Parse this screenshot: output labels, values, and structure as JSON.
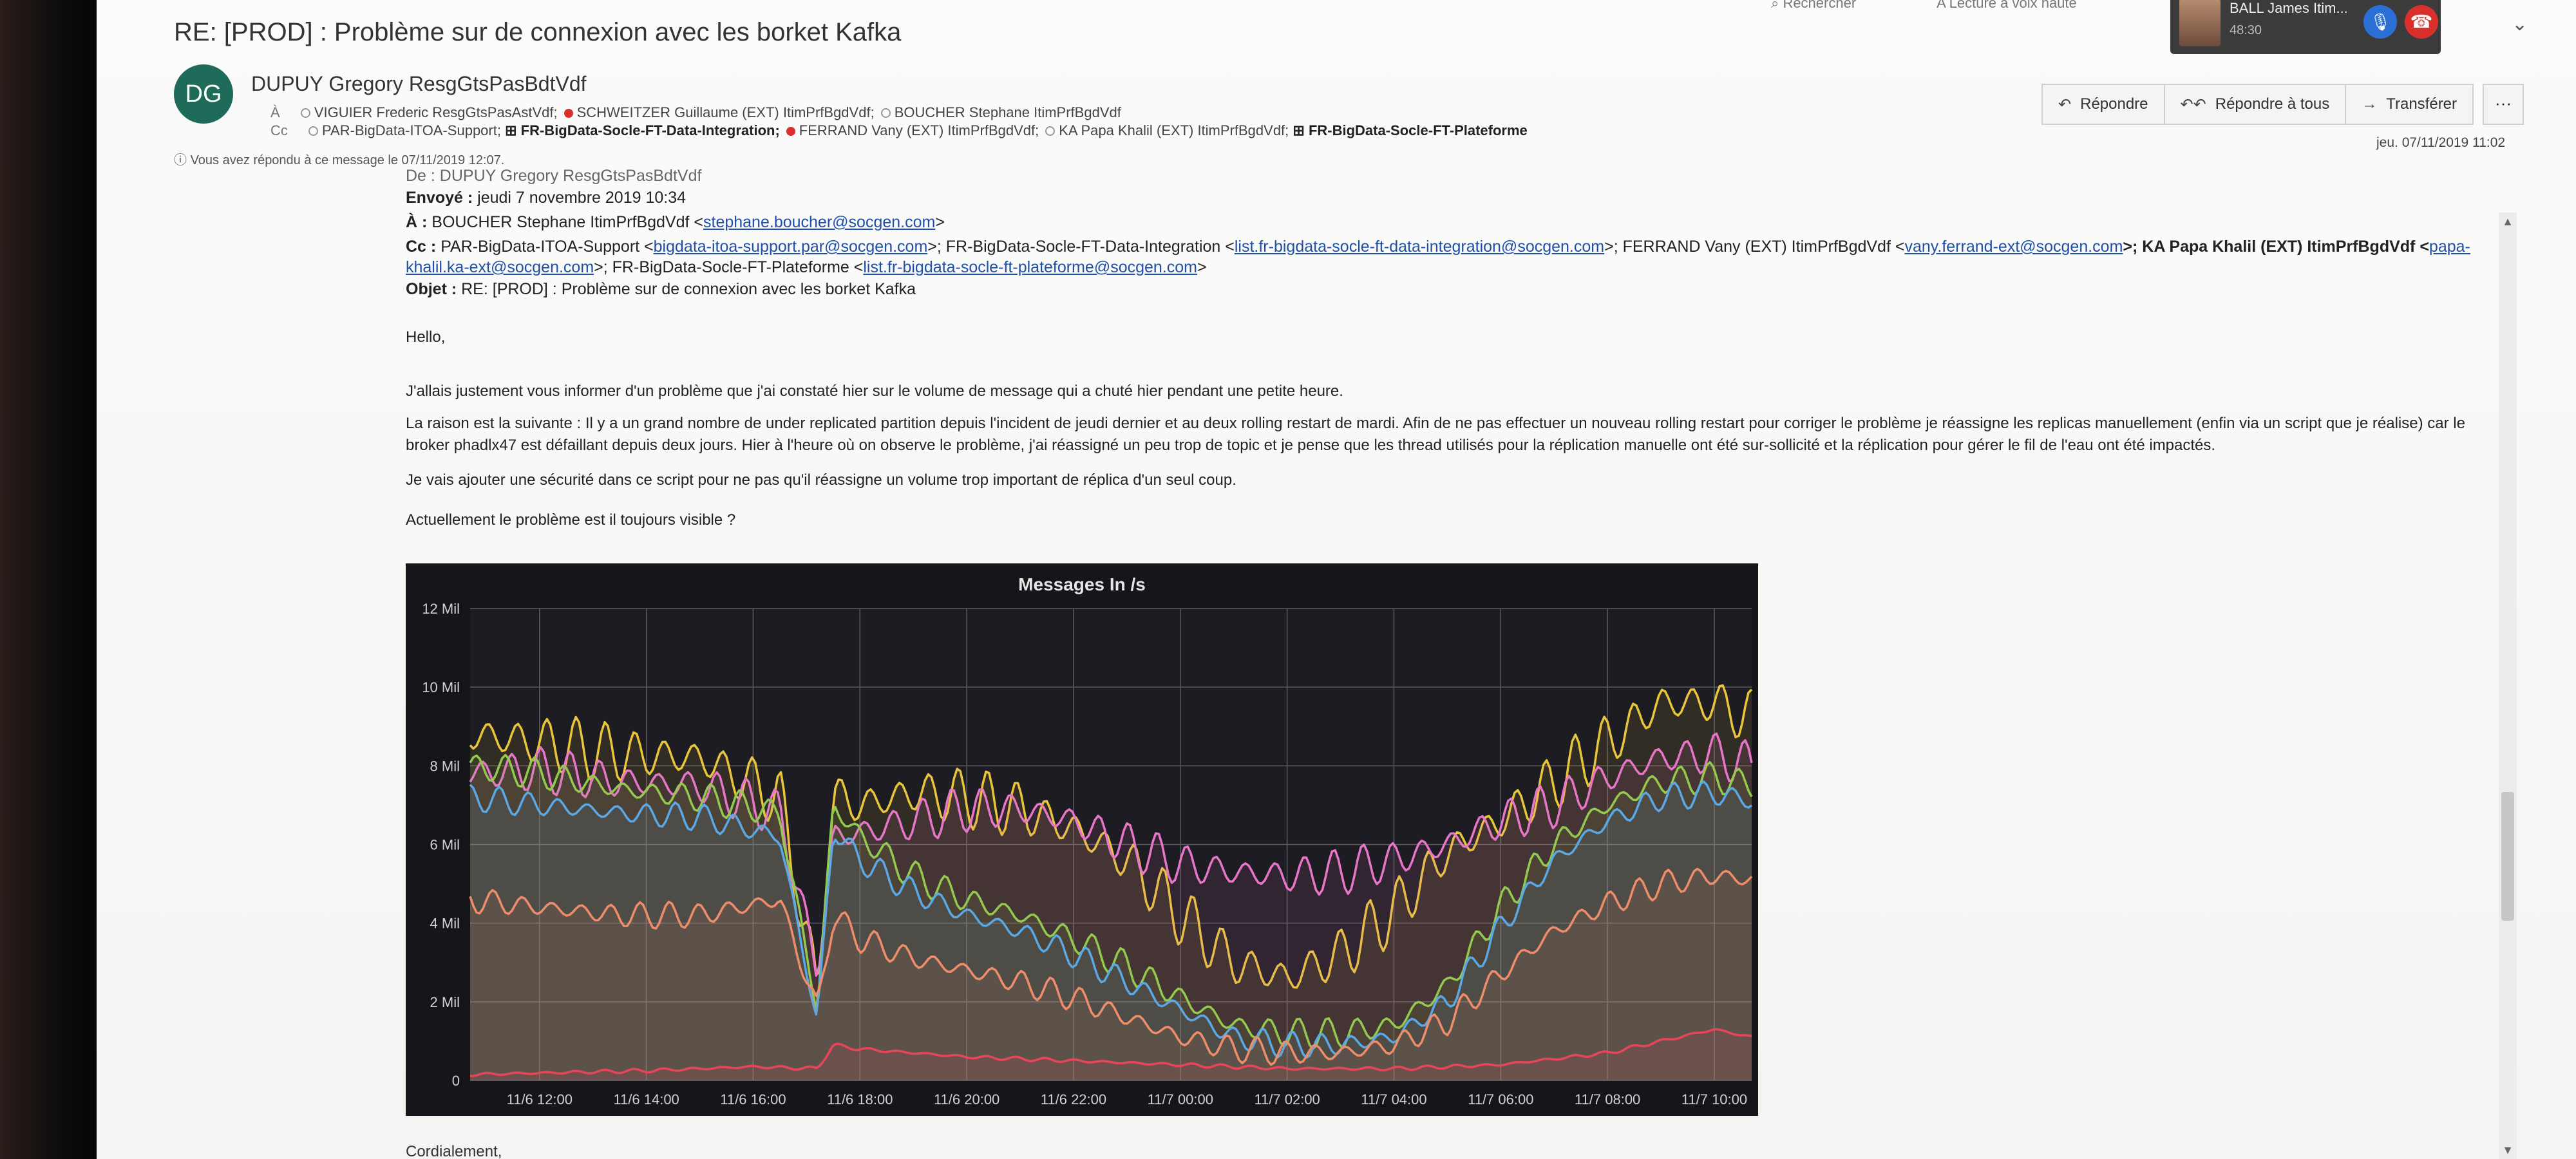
{
  "email": {
    "subject": "RE: [PROD] : Problème sur de connexion avec les borket Kafka",
    "sender": {
      "initials": "DG",
      "name": "DUPUY Gregory ResgGtsPasBdtVdf"
    },
    "to_label": "À",
    "to_recipients": [
      {
        "name": "VIGUIER Frederic ResgGtsPasAstVdf;",
        "status": "off",
        "bold": false
      },
      {
        "name": "SCHWEITZER Guillaume (EXT) ItimPrfBgdVdf;",
        "status": "red",
        "bold": false
      },
      {
        "name": "BOUCHER Stephane ItimPrfBgdVdf",
        "status": "off",
        "bold": false
      }
    ],
    "cc_label": "Cc",
    "cc_recipients": [
      {
        "name": "PAR-BigData-ITOA-Support;",
        "status": "off",
        "bold": false
      },
      {
        "name": "⊞ FR-BigData-Socle-FT-Data-Integration;",
        "status": "none",
        "bold": true
      },
      {
        "name": "FERRAND Vany (EXT) ItimPrfBgdVdf;",
        "status": "red",
        "bold": false
      }
    ],
    "cc_recipients_2": [
      {
        "name": "KA Papa Khalil (EXT) ItimPrfBgdVdf;",
        "status": "off",
        "bold": false
      },
      {
        "name": "⊞ FR-BigData-Socle-FT-Plateforme",
        "status": "none",
        "bold": true
      }
    ],
    "replied_note": "Vous avez répondu à ce message le 07/11/2019 12:07.",
    "received_date": "jeu. 07/11/2019 11:02",
    "actions": {
      "reply": "Répondre",
      "reply_all": "Répondre à tous",
      "forward": "Transférer",
      "more": "···"
    }
  },
  "toolbar": {
    "search": "Rechercher",
    "read_aloud": "Lecture à voix haute"
  },
  "call": {
    "name": "BALL James Itim...",
    "time": "48:30"
  },
  "body": {
    "from_line": "De : DUPUY Gregory ResgGtsPasBdtVdf",
    "sent_label": "Envoyé :",
    "sent_value": "jeudi 7 novembre 2019 10:34",
    "to_label": "À :",
    "to_value": "BOUCHER Stephane ItimPrfBgdVdf <",
    "to_email": "stephane.boucher@socgen.com",
    "cc_label": "Cc :",
    "cc_p1": "PAR-BigData-ITOA-Support <",
    "cc_e1": "bigdata-itoa-support.par@socgen.com",
    "cc_p2": ">; FR-BigData-Socle-FT-Data-Integration <",
    "cc_e2": "list.fr-bigdata-socle-ft-data-integration@socgen.com",
    "cc_p3": ">; FERRAND Vany (EXT) ItimPrfBgdVdf <",
    "cc_e3": "vany.ferrand-ext@socgen.com",
    "cc_p4": ">; KA Papa Khalil (EXT) ItimPrfBgdVdf <",
    "cc_e4a": "papa-",
    "cc_e4b": "khalil.ka-ext@socgen.com",
    "cc_p5": ">; FR-BigData-Socle-FT-Plateforme <",
    "cc_e5": "list.fr-bigdata-socle-ft-plateforme@socgen.com",
    "cc_end": ">",
    "subject_label": "Objet :",
    "subject_value": "RE: [PROD] : Problème sur de connexion avec les borket Kafka",
    "greeting": "Hello,",
    "p1": "J'allais justement vous informer d'un problème que j'ai constaté hier sur le volume de message qui a chuté hier pendant une petite heure.",
    "p2": "La raison est la suivante : Il y a un grand nombre de under replicated partition depuis l'incident de jeudi dernier et au deux rolling restart de mardi. Afin de ne pas effectuer un nouveau rolling restart pour corriger le problème je réassigne les replicas manuellement (enfin via un script que je réalise) car le broker phadlx47 est défaillant depuis deux jours. Hier à l'heure où on observe le problème, j'ai réassigné un peu trop de topic et je pense que les thread utilisés pour la réplication manuelle ont été sur-sollicité et la réplication pour gérer le fil de l'eau ont été impactés.",
    "p3": "Je vais ajouter une sécurité dans ce script pour ne pas qu'il réassigne un volume trop important de réplica d'un seul coup.",
    "p4": "Actuellement le problème est il toujours visible ?",
    "closing": "Cordialement,"
  },
  "chart_data": {
    "type": "line",
    "title": "Messages In /s",
    "xlabel": "",
    "ylabel": "",
    "ylim": [
      0,
      12
    ],
    "y_ticks": [
      {
        "value": 0,
        "label": "0"
      },
      {
        "value": 2,
        "label": "2 Mil"
      },
      {
        "value": 4,
        "label": "4 Mil"
      },
      {
        "value": 6,
        "label": "6 Mil"
      },
      {
        "value": 8,
        "label": "8 Mil"
      },
      {
        "value": 10,
        "label": "10 Mil"
      },
      {
        "value": 12,
        "label": "12 Mil"
      }
    ],
    "x_ticks": [
      "11/6 12:00",
      "11/6 14:00",
      "11/6 16:00",
      "11/6 18:00",
      "11/6 20:00",
      "11/6 22:00",
      "11/7 00:00",
      "11/7 02:00",
      "11/7 04:00",
      "11/7 06:00",
      "11/7 08:00",
      "11/7 10:00"
    ],
    "x_range_hours": [
      -1.3,
      22.7
    ],
    "grid": true,
    "legend": "none",
    "series": [
      {
        "color": "#e8c53a",
        "amplitude": 0.8,
        "points": [
          [
            -1.3,
            8.8
          ],
          [
            0,
            8.6
          ],
          [
            1.5,
            8.3
          ],
          [
            3,
            8.2
          ],
          [
            4.5,
            7.2
          ],
          [
            5.2,
            2.2
          ],
          [
            5.5,
            7.2
          ],
          [
            6,
            7.0
          ],
          [
            7,
            7.3
          ],
          [
            8,
            7.2
          ],
          [
            9,
            6.9
          ],
          [
            10,
            6.4
          ],
          [
            11,
            5.6
          ],
          [
            12,
            4.2
          ],
          [
            13,
            3.0
          ],
          [
            14,
            2.6
          ],
          [
            15,
            3.2
          ],
          [
            16,
            4.3
          ],
          [
            17,
            5.8
          ],
          [
            18,
            6.6
          ],
          [
            19,
            7.6
          ],
          [
            20,
            8.6
          ],
          [
            21,
            9.6
          ],
          [
            22,
            9.6
          ],
          [
            22.7,
            9.2
          ]
        ]
      },
      {
        "color": "#e876c8",
        "amplitude": 0.6,
        "points": [
          [
            -1.3,
            7.8
          ],
          [
            0,
            7.9
          ],
          [
            1.5,
            7.6
          ],
          [
            3,
            7.5
          ],
          [
            4.5,
            6.8
          ],
          [
            5.2,
            2.8
          ],
          [
            5.5,
            6.2
          ],
          [
            6,
            6.3
          ],
          [
            7,
            6.6
          ],
          [
            8,
            6.9
          ],
          [
            9,
            6.9
          ],
          [
            10,
            6.6
          ],
          [
            11,
            6.0
          ],
          [
            12,
            5.5
          ],
          [
            13,
            5.3
          ],
          [
            14,
            5.2
          ],
          [
            15,
            5.3
          ],
          [
            16,
            5.6
          ],
          [
            17,
            6.0
          ],
          [
            18,
            6.6
          ],
          [
            19,
            7.0
          ],
          [
            20,
            7.7
          ],
          [
            21,
            8.2
          ],
          [
            22,
            8.3
          ],
          [
            22.7,
            8.0
          ]
        ]
      },
      {
        "color": "#94c94f",
        "amplitude": 0.4,
        "points": [
          [
            -1.3,
            8.0
          ],
          [
            0,
            7.8
          ],
          [
            1.5,
            7.4
          ],
          [
            3,
            7.2
          ],
          [
            4.5,
            6.8
          ],
          [
            5.2,
            1.8
          ],
          [
            5.5,
            7.0
          ],
          [
            6,
            6.2
          ],
          [
            7,
            5.2
          ],
          [
            8,
            4.6
          ],
          [
            9,
            4.2
          ],
          [
            10,
            3.6
          ],
          [
            11,
            2.9
          ],
          [
            12,
            2.1
          ],
          [
            13,
            1.4
          ],
          [
            14,
            1.2
          ],
          [
            15,
            1.2
          ],
          [
            16,
            1.4
          ],
          [
            17,
            2.4
          ],
          [
            18,
            4.4
          ],
          [
            19,
            6.0
          ],
          [
            20,
            7.0
          ],
          [
            21,
            7.6
          ],
          [
            22,
            7.7
          ],
          [
            22.7,
            7.5
          ]
        ]
      },
      {
        "color": "#5aa8e6",
        "amplitude": 0.35,
        "points": [
          [
            -1.3,
            7.2
          ],
          [
            0,
            7.0
          ],
          [
            1.5,
            6.8
          ],
          [
            3,
            6.7
          ],
          [
            4.5,
            6.2
          ],
          [
            5.2,
            1.5
          ],
          [
            5.5,
            6.4
          ],
          [
            6,
            5.6
          ],
          [
            7,
            4.8
          ],
          [
            8,
            4.2
          ],
          [
            9,
            3.8
          ],
          [
            10,
            3.2
          ],
          [
            11,
            2.5
          ],
          [
            12,
            1.8
          ],
          [
            13,
            1.1
          ],
          [
            14,
            0.9
          ],
          [
            15,
            0.9
          ],
          [
            16,
            1.1
          ],
          [
            17,
            2.0
          ],
          [
            18,
            3.9
          ],
          [
            19,
            5.6
          ],
          [
            20,
            6.6
          ],
          [
            21,
            7.2
          ],
          [
            22,
            7.3
          ],
          [
            22.7,
            7.1
          ]
        ]
      },
      {
        "color": "#ef8d6a",
        "amplitude": 0.35,
        "points": [
          [
            -1.3,
            4.6
          ],
          [
            0,
            4.4
          ],
          [
            1.5,
            4.2
          ],
          [
            3,
            4.2
          ],
          [
            4.5,
            4.6
          ],
          [
            5.2,
            1.8
          ],
          [
            5.5,
            4.2
          ],
          [
            6,
            3.6
          ],
          [
            7,
            3.1
          ],
          [
            8,
            2.8
          ],
          [
            9,
            2.5
          ],
          [
            10,
            2.1
          ],
          [
            11,
            1.6
          ],
          [
            12,
            1.1
          ],
          [
            13,
            0.8
          ],
          [
            14,
            0.7
          ],
          [
            15,
            0.7
          ],
          [
            16,
            0.9
          ],
          [
            17,
            1.5
          ],
          [
            18,
            2.7
          ],
          [
            19,
            3.8
          ],
          [
            20,
            4.5
          ],
          [
            21,
            5.0
          ],
          [
            22,
            5.2
          ],
          [
            22.7,
            5.1
          ]
        ]
      },
      {
        "color": "#e8455a",
        "amplitude": 0.05,
        "points": [
          [
            -1.3,
            0.15
          ],
          [
            2,
            0.25
          ],
          [
            4,
            0.35
          ],
          [
            5.2,
            0.3
          ],
          [
            5.5,
            0.9
          ],
          [
            6,
            0.8
          ],
          [
            8,
            0.6
          ],
          [
            10,
            0.5
          ],
          [
            12,
            0.4
          ],
          [
            14,
            0.3
          ],
          [
            16,
            0.3
          ],
          [
            18,
            0.4
          ],
          [
            20,
            0.7
          ],
          [
            22,
            1.3
          ],
          [
            22.7,
            1.1
          ]
        ]
      }
    ]
  }
}
